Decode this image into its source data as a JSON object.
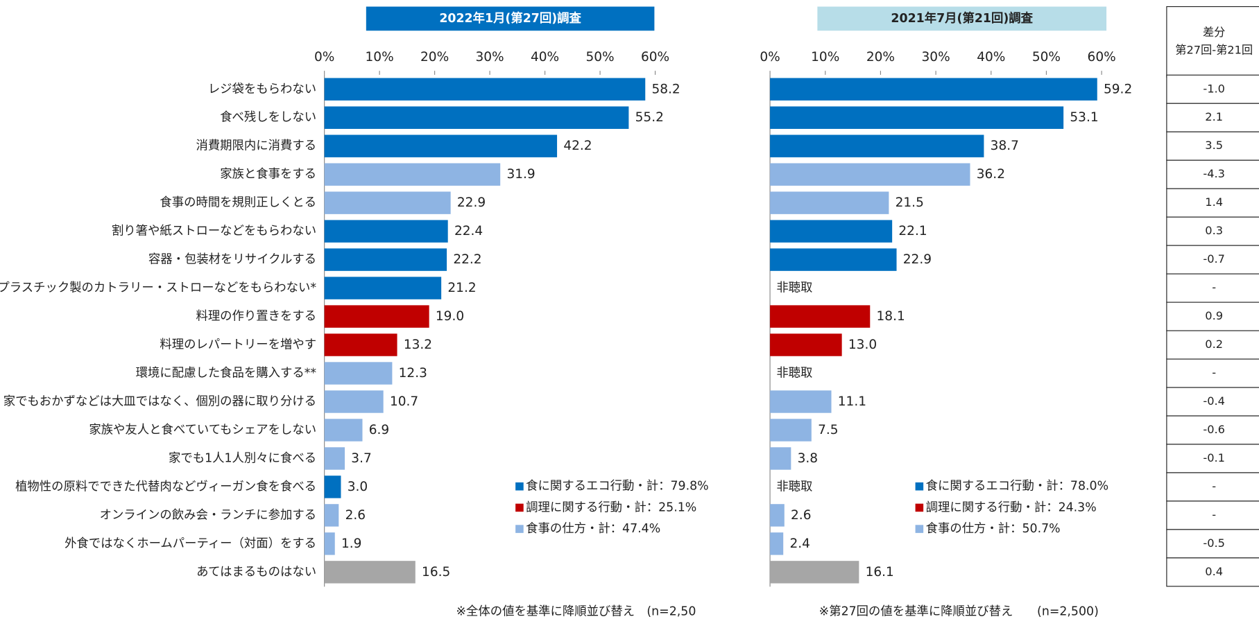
{
  "chart_data": [
    {
      "type": "bar",
      "orientation": "horizontal",
      "title": "2022年1月(第27回)調査",
      "categories": [
        "レジ袋をもらわない",
        "食べ残しをしない",
        "消費期限内に消費する",
        "家族と食事をする",
        "食事の時間を規則正しくとる",
        "割り箸や紙ストローなどをもらわない",
        "容器・包装材をリサイクルする",
        "プラスチック製のカトラリー・ストローなどをもらわない*",
        "料理の作り置きをする",
        "料理のレパートリーを増やす",
        "環境に配慮した食品を購入する**",
        "家でもおかずなどは大皿ではなく、個別の器に取り分ける",
        "家族や友人と食べていてもシェアをしない",
        "家でも1人1人別々に食べる",
        "植物性の原料でできた代替肉などヴィーガン食を食べる",
        "オンラインの飲み会・ランチに参加する",
        "外食ではなくホームパーティー（対面）をする",
        "あてはまるものはない"
      ],
      "values": [
        58.2,
        55.2,
        42.2,
        31.9,
        22.9,
        22.4,
        22.2,
        21.2,
        19.0,
        13.2,
        12.3,
        10.7,
        6.9,
        3.7,
        3.0,
        2.6,
        1.9,
        16.5
      ],
      "value_labels": [
        "58.2",
        "55.2",
        "42.2",
        "31.9",
        "22.9",
        "22.4",
        "22.2",
        "21.2",
        "19.0",
        "13.2",
        "12.3",
        "10.7",
        "6.9",
        "3.7",
        "3.0",
        "2.6",
        "1.9",
        "16.5"
      ],
      "colors": [
        "#0070c0",
        "#0070c0",
        "#0070c0",
        "#8eb4e3",
        "#8eb4e3",
        "#0070c0",
        "#0070c0",
        "#0070c0",
        "#c00000",
        "#c00000",
        "#8eb4e3",
        "#8eb4e3",
        "#8eb4e3",
        "#8eb4e3",
        "#0070c0",
        "#8eb4e3",
        "#8eb4e3",
        "#a6a6a6"
      ],
      "xlim": [
        0,
        60
      ],
      "xticks": [
        {
          "value": 0,
          "label": "0%"
        },
        {
          "value": 10,
          "label": "10%"
        },
        {
          "value": 20,
          "label": "20%"
        },
        {
          "value": 30,
          "label": "30%"
        },
        {
          "value": 40,
          "label": "40%"
        },
        {
          "value": 50,
          "label": "50%"
        },
        {
          "value": 60,
          "label": "60%"
        }
      ],
      "legend": [
        {
          "name": "食に関するエコ行動・計：79.8%",
          "color": "#0070c0"
        },
        {
          "name": "調理に関する行動・計：25.1%",
          "color": "#c00000"
        },
        {
          "name": "食事の仕方・計：47.4%",
          "color": "#8eb4e3"
        }
      ],
      "note": "※全体の値を基準に降順並び替え　(n=2,50"
    },
    {
      "type": "bar",
      "orientation": "horizontal",
      "title": "2021年7月(第21回)調査",
      "values": [
        59.2,
        53.1,
        38.7,
        36.2,
        21.5,
        22.1,
        22.9,
        null,
        18.1,
        13.0,
        null,
        11.1,
        7.5,
        3.8,
        null,
        2.6,
        2.4,
        16.1
      ],
      "value_labels": [
        "59.2",
        "53.1",
        "38.7",
        "36.2",
        "21.5",
        "22.1",
        "22.9",
        "非聴取",
        "18.1",
        "13.0",
        "非聴取",
        "11.1",
        "7.5",
        "3.8",
        "非聴取",
        "2.6",
        "2.4",
        "16.1"
      ],
      "colors": [
        "#0070c0",
        "#0070c0",
        "#0070c0",
        "#8eb4e3",
        "#8eb4e3",
        "#0070c0",
        "#0070c0",
        "#0070c0",
        "#c00000",
        "#c00000",
        "#8eb4e3",
        "#8eb4e3",
        "#8eb4e3",
        "#8eb4e3",
        "#0070c0",
        "#8eb4e3",
        "#8eb4e3",
        "#a6a6a6"
      ],
      "xlim": [
        0,
        60
      ],
      "xticks": [
        {
          "value": 0,
          "label": "0%"
        },
        {
          "value": 10,
          "label": "10%"
        },
        {
          "value": 20,
          "label": "20%"
        },
        {
          "value": 30,
          "label": "30%"
        },
        {
          "value": 40,
          "label": "40%"
        },
        {
          "value": 50,
          "label": "50%"
        },
        {
          "value": 60,
          "label": "60%"
        }
      ],
      "legend": [
        {
          "name": "食に関するエコ行動・計：78.0%",
          "color": "#0070c0"
        },
        {
          "name": "調理に関する行動・計：24.3%",
          "color": "#c00000"
        },
        {
          "name": "食事の仕方・計：50.7%",
          "color": "#8eb4e3"
        }
      ],
      "note": "※第27回の値を基準に降順並び替え　　(n=2,500)"
    }
  ],
  "table": {
    "header": [
      "差分",
      "第27回-第21回"
    ],
    "rows": [
      "-1.0",
      "2.1",
      "3.5",
      "-4.3",
      "1.4",
      "0.3",
      "-0.7",
      "-",
      "0.9",
      "0.2",
      "-",
      "-0.4",
      "-0.6",
      "-0.1",
      "-",
      "-",
      "-0.5",
      "0.4"
    ]
  }
}
